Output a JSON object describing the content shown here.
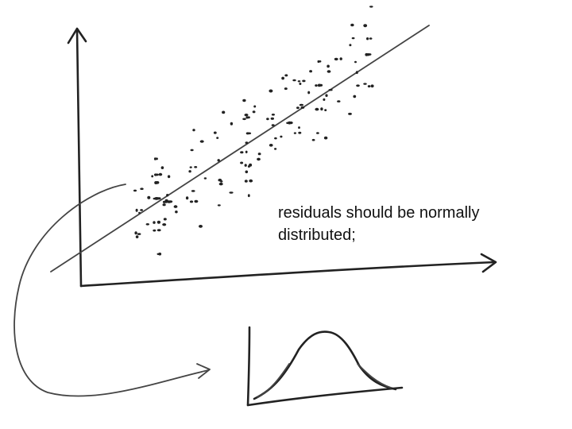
{
  "caption": {
    "line1": "residuals should be normally",
    "line2": "distributed;"
  }
}
